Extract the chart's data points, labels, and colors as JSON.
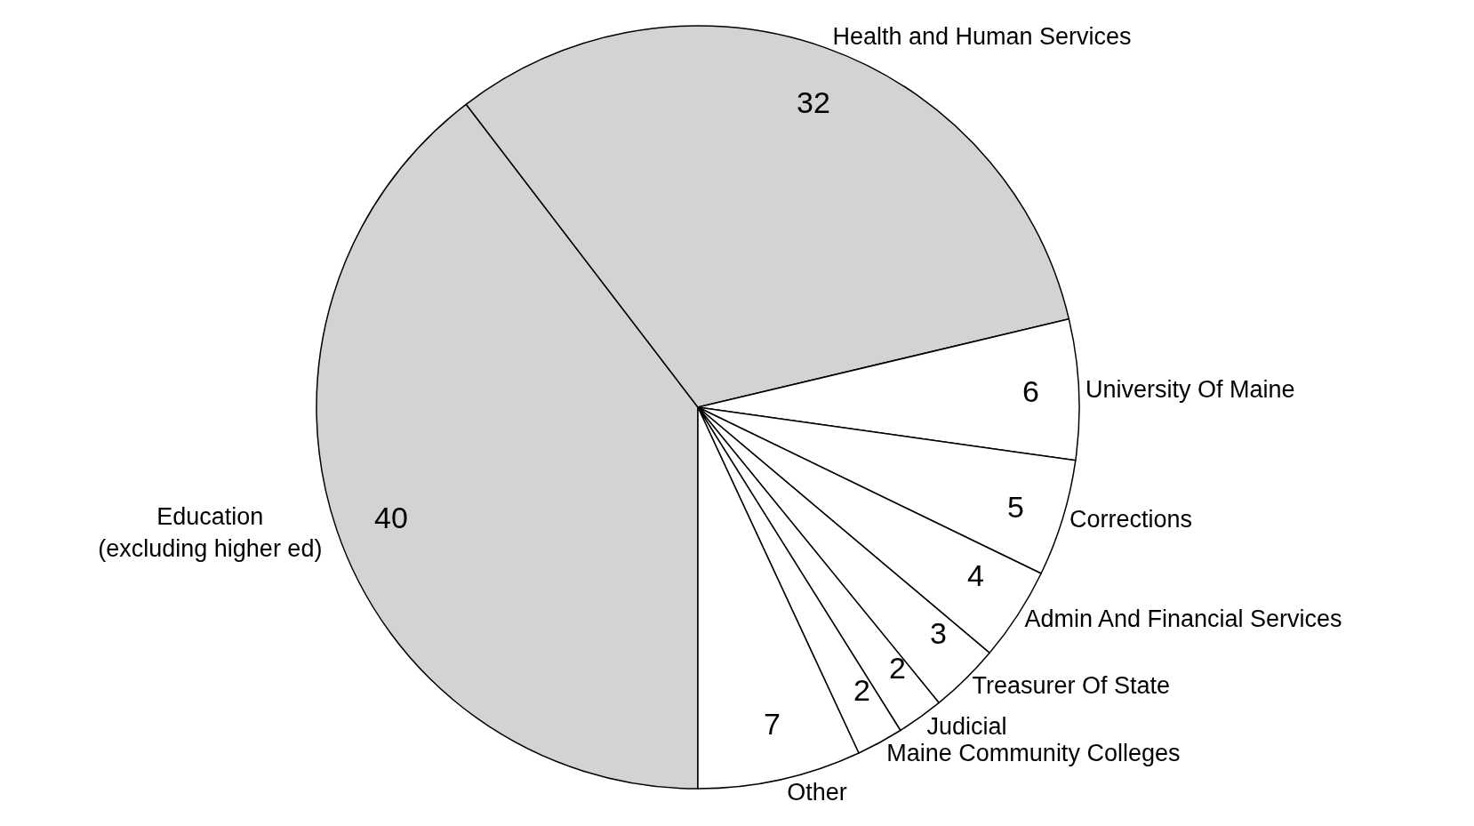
{
  "chart_data": {
    "type": "pie",
    "categories": [
      "Education\n(excluding higher ed)",
      "Health and Human Services",
      "University Of Maine",
      "Corrections",
      "Admin And Financial Services",
      "Treasurer Of State",
      "Judicial",
      "Maine Community Colleges",
      "Other"
    ],
    "values": [
      40,
      32,
      6,
      5,
      4,
      3,
      2,
      2,
      7
    ],
    "colors": [
      "#d3d3d3",
      "#d3d3d3",
      "#ffffff",
      "#ffffff",
      "#ffffff",
      "#ffffff",
      "#ffffff",
      "#ffffff",
      "#ffffff"
    ],
    "data_labels": true
  }
}
